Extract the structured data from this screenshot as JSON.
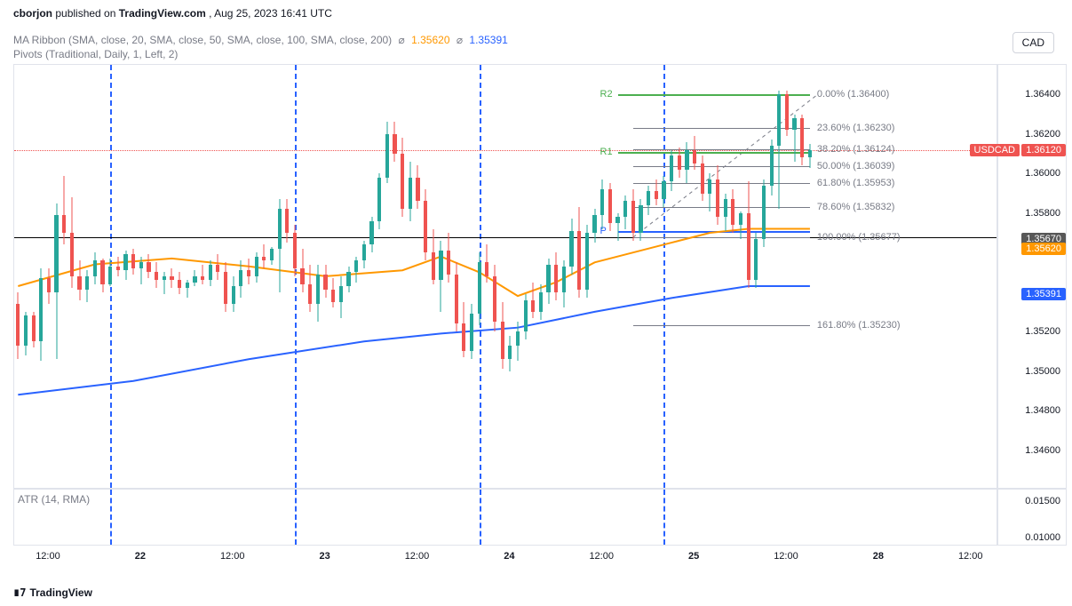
{
  "publish": {
    "author": "cborjon",
    "source": "TradingView.com",
    "ts": "Aug 25, 2023 16:41 UTC"
  },
  "currency_button": "CAD",
  "indicators": {
    "ma_ribbon": {
      "label": "MA Ribbon (SMA, close, 20, SMA, close, 50, SMA, close, 100, SMA, close, 200)",
      "val1": "1.35620",
      "val1_color": "#ff9800",
      "val2": "1.35391",
      "val2_color": "#2962ff"
    },
    "pivots": {
      "label": "Pivots (Traditional, Daily, 1, Left, 2)"
    },
    "atr": {
      "label": "ATR (14, RMA)"
    }
  },
  "price_axis": {
    "min": 1.344,
    "max": 1.3655,
    "ticks": [
      1.364,
      1.362,
      1.36,
      1.358,
      1.3567,
      1.354,
      1.352,
      1.35,
      1.348,
      1.346
    ],
    "tick_labels": [
      "1.36400",
      "1.36200",
      "1.36000",
      "1.35800",
      "1.35670",
      "1.35400",
      "1.35200",
      "1.35000",
      "1.34800",
      "1.34600"
    ],
    "badges": [
      {
        "text": "1.36120",
        "price": 1.3612,
        "bg": "#ef5350",
        "pair_text": "USDCAD",
        "pair_bg": "#ef5350"
      },
      {
        "text": "1.35670",
        "price": 1.3567,
        "bg": "#585858"
      },
      {
        "text": "1.35620",
        "price": 1.3562,
        "bg": "#ff9800"
      },
      {
        "text": "1.35391",
        "price": 1.35391,
        "bg": "#2962ff"
      }
    ]
  },
  "atr_axis": {
    "tick_labels": [
      "0.01500",
      "0.01000"
    ],
    "tick_pos": [
      0.2,
      0.85
    ]
  },
  "time_axis": {
    "labels": [
      {
        "t": 4,
        "text": "12:00"
      },
      {
        "t": 16,
        "text": "22",
        "bold": true
      },
      {
        "t": 28,
        "text": "12:00"
      },
      {
        "t": 40,
        "text": "23",
        "bold": true
      },
      {
        "t": 52,
        "text": "12:00"
      },
      {
        "t": 64,
        "text": "24",
        "bold": true
      },
      {
        "t": 76,
        "text": "12:00"
      },
      {
        "t": 88,
        "text": "25",
        "bold": true
      },
      {
        "t": 100,
        "text": "12:00"
      },
      {
        "t": 112,
        "text": "28",
        "bold": true
      },
      {
        "t": 124,
        "text": "12:00"
      }
    ],
    "nslots": 128
  },
  "session_lines": [
    12,
    36,
    60,
    84
  ],
  "fibs": {
    "x0_slot": 80,
    "x1_slot": 103,
    "levels": [
      {
        "pct": "0.00%",
        "price": 1.364,
        "label": "0.00% (1.36400)"
      },
      {
        "pct": "23.60%",
        "price": 1.3623,
        "label": "23.60% (1.36230)"
      },
      {
        "pct": "38.20%",
        "price": 1.36124,
        "label": "38.20% (1.36124)"
      },
      {
        "pct": "50.00%",
        "price": 1.36039,
        "label": "50.00% (1.36039)"
      },
      {
        "pct": "61.80%",
        "price": 1.35953,
        "label": "61.80% (1.35953)"
      },
      {
        "pct": "78.60%",
        "price": 1.35832,
        "label": "78.60% (1.35832)"
      },
      {
        "pct": "100.00%",
        "price": 1.35677,
        "label": "100.00% (1.35677)"
      },
      {
        "pct": "161.80%",
        "price": 1.3523,
        "label": "161.80% (1.35230)"
      }
    ],
    "trend_dash": {
      "from_slot": 80,
      "from_price": 1.35677,
      "to_slot": 104,
      "to_price": 1.364
    },
    "line_color": "#787b86",
    "label_x_offset": 8
  },
  "pivots": {
    "x0_slot": 78,
    "x1_slot": 103,
    "R2": {
      "label": "R2",
      "price": 1.364,
      "color": "#4caf50"
    },
    "R1": {
      "label": "R1",
      "price": 1.3611,
      "color": "#4caf50"
    },
    "P": {
      "label": "P",
      "price": 1.3571,
      "color": "#2962ff"
    }
  },
  "red_dotted_price": 1.3612,
  "black_hline_price": 1.35677,
  "ma20": {
    "color": "#ff9800",
    "width": 2,
    "pts": [
      [
        0,
        1.3543
      ],
      [
        10,
        1.3554
      ],
      [
        20,
        1.3557
      ],
      [
        30,
        1.3553
      ],
      [
        40,
        1.3548
      ],
      [
        50,
        1.3551
      ],
      [
        55,
        1.3558
      ],
      [
        60,
        1.355
      ],
      [
        65,
        1.3538
      ],
      [
        70,
        1.3545
      ],
      [
        75,
        1.3555
      ],
      [
        80,
        1.356
      ],
      [
        85,
        1.3565
      ],
      [
        90,
        1.357
      ],
      [
        95,
        1.3572
      ],
      [
        100,
        1.3572
      ],
      [
        103,
        1.3572
      ]
    ]
  },
  "ma50": {
    "color": "#2962ff",
    "width": 2,
    "pts": [
      [
        0,
        1.3488
      ],
      [
        15,
        1.3495
      ],
      [
        30,
        1.3506
      ],
      [
        45,
        1.3515
      ],
      [
        55,
        1.3519
      ],
      [
        65,
        1.3522
      ],
      [
        75,
        1.353
      ],
      [
        85,
        1.3537
      ],
      [
        95,
        1.3543
      ],
      [
        103,
        1.3543
      ]
    ]
  },
  "candles": [
    {
      "t": 0,
      "o": 1.3534,
      "h": 1.354,
      "l": 1.3506,
      "c": 1.3513
    },
    {
      "t": 1,
      "o": 1.3513,
      "h": 1.353,
      "l": 1.3508,
      "c": 1.3528
    },
    {
      "t": 2,
      "o": 1.3528,
      "h": 1.353,
      "l": 1.3512,
      "c": 1.3515
    },
    {
      "t": 3,
      "o": 1.3515,
      "h": 1.3552,
      "l": 1.3505,
      "c": 1.3547
    },
    {
      "t": 4,
      "o": 1.3547,
      "h": 1.3552,
      "l": 1.3534,
      "c": 1.354
    },
    {
      "t": 5,
      "o": 1.354,
      "h": 1.3585,
      "l": 1.3506,
      "c": 1.3579
    },
    {
      "t": 6,
      "o": 1.3579,
      "h": 1.3599,
      "l": 1.3564,
      "c": 1.357
    },
    {
      "t": 7,
      "o": 1.357,
      "h": 1.3588,
      "l": 1.3542,
      "c": 1.3548
    },
    {
      "t": 8,
      "o": 1.3548,
      "h": 1.3556,
      "l": 1.3536,
      "c": 1.3541
    },
    {
      "t": 9,
      "o": 1.3541,
      "h": 1.3551,
      "l": 1.3535,
      "c": 1.3548
    },
    {
      "t": 10,
      "o": 1.3548,
      "h": 1.356,
      "l": 1.3544,
      "c": 1.3556
    },
    {
      "t": 11,
      "o": 1.3556,
      "h": 1.3557,
      "l": 1.354,
      "c": 1.3544
    },
    {
      "t": 12,
      "o": 1.3544,
      "h": 1.3557,
      "l": 1.3543,
      "c": 1.3553
    },
    {
      "t": 13,
      "o": 1.3553,
      "h": 1.3558,
      "l": 1.3548,
      "c": 1.3551
    },
    {
      "t": 14,
      "o": 1.3551,
      "h": 1.3561,
      "l": 1.3546,
      "c": 1.3559
    },
    {
      "t": 15,
      "o": 1.3559,
      "h": 1.3562,
      "l": 1.3549,
      "c": 1.3552
    },
    {
      "t": 16,
      "o": 1.3552,
      "h": 1.3558,
      "l": 1.3544,
      "c": 1.3555
    },
    {
      "t": 17,
      "o": 1.3555,
      "h": 1.3559,
      "l": 1.3547,
      "c": 1.355
    },
    {
      "t": 18,
      "o": 1.355,
      "h": 1.3555,
      "l": 1.3542,
      "c": 1.3546
    },
    {
      "t": 19,
      "o": 1.3546,
      "h": 1.355,
      "l": 1.3539,
      "c": 1.3548
    },
    {
      "t": 20,
      "o": 1.3548,
      "h": 1.3552,
      "l": 1.3542,
      "c": 1.3546
    },
    {
      "t": 21,
      "o": 1.3546,
      "h": 1.355,
      "l": 1.3539,
      "c": 1.3542
    },
    {
      "t": 22,
      "o": 1.3542,
      "h": 1.3546,
      "l": 1.3537,
      "c": 1.3545
    },
    {
      "t": 23,
      "o": 1.3545,
      "h": 1.3551,
      "l": 1.3543,
      "c": 1.3548
    },
    {
      "t": 24,
      "o": 1.3548,
      "h": 1.3554,
      "l": 1.3544,
      "c": 1.3546
    },
    {
      "t": 25,
      "o": 1.3546,
      "h": 1.3556,
      "l": 1.3543,
      "c": 1.3554
    },
    {
      "t": 26,
      "o": 1.3554,
      "h": 1.3559,
      "l": 1.3546,
      "c": 1.355
    },
    {
      "t": 27,
      "o": 1.355,
      "h": 1.3555,
      "l": 1.353,
      "c": 1.3534
    },
    {
      "t": 28,
      "o": 1.3534,
      "h": 1.3548,
      "l": 1.353,
      "c": 1.3543
    },
    {
      "t": 29,
      "o": 1.3543,
      "h": 1.3556,
      "l": 1.3537,
      "c": 1.3551
    },
    {
      "t": 30,
      "o": 1.3551,
      "h": 1.3557,
      "l": 1.3544,
      "c": 1.3548
    },
    {
      "t": 31,
      "o": 1.3548,
      "h": 1.356,
      "l": 1.3545,
      "c": 1.3558
    },
    {
      "t": 32,
      "o": 1.3558,
      "h": 1.3564,
      "l": 1.3552,
      "c": 1.3556
    },
    {
      "t": 33,
      "o": 1.3556,
      "h": 1.3563,
      "l": 1.3554,
      "c": 1.3562
    },
    {
      "t": 34,
      "o": 1.3562,
      "h": 1.3587,
      "l": 1.354,
      "c": 1.3582
    },
    {
      "t": 35,
      "o": 1.3582,
      "h": 1.3587,
      "l": 1.3565,
      "c": 1.357
    },
    {
      "t": 36,
      "o": 1.357,
      "h": 1.3574,
      "l": 1.3548,
      "c": 1.3552
    },
    {
      "t": 37,
      "o": 1.3552,
      "h": 1.3562,
      "l": 1.354,
      "c": 1.3544
    },
    {
      "t": 38,
      "o": 1.3544,
      "h": 1.3554,
      "l": 1.353,
      "c": 1.3534
    },
    {
      "t": 39,
      "o": 1.3534,
      "h": 1.3554,
      "l": 1.3525,
      "c": 1.3549
    },
    {
      "t": 40,
      "o": 1.3549,
      "h": 1.3554,
      "l": 1.3537,
      "c": 1.3541
    },
    {
      "t": 41,
      "o": 1.3541,
      "h": 1.3547,
      "l": 1.3532,
      "c": 1.3535
    },
    {
      "t": 42,
      "o": 1.3535,
      "h": 1.3548,
      "l": 1.3527,
      "c": 1.3543
    },
    {
      "t": 43,
      "o": 1.3543,
      "h": 1.3553,
      "l": 1.354,
      "c": 1.355
    },
    {
      "t": 44,
      "o": 1.355,
      "h": 1.3558,
      "l": 1.3545,
      "c": 1.3556
    },
    {
      "t": 45,
      "o": 1.3556,
      "h": 1.3566,
      "l": 1.3552,
      "c": 1.3564
    },
    {
      "t": 46,
      "o": 1.3564,
      "h": 1.3578,
      "l": 1.356,
      "c": 1.3576
    },
    {
      "t": 47,
      "o": 1.3576,
      "h": 1.36,
      "l": 1.3572,
      "c": 1.3598
    },
    {
      "t": 48,
      "o": 1.3598,
      "h": 1.3626,
      "l": 1.3595,
      "c": 1.362
    },
    {
      "t": 49,
      "o": 1.362,
      "h": 1.3626,
      "l": 1.3606,
      "c": 1.361
    },
    {
      "t": 50,
      "o": 1.361,
      "h": 1.3618,
      "l": 1.3578,
      "c": 1.3582
    },
    {
      "t": 51,
      "o": 1.3582,
      "h": 1.3606,
      "l": 1.3576,
      "c": 1.3598
    },
    {
      "t": 52,
      "o": 1.3598,
      "h": 1.3604,
      "l": 1.3582,
      "c": 1.3586
    },
    {
      "t": 53,
      "o": 1.3586,
      "h": 1.3592,
      "l": 1.3556,
      "c": 1.356
    },
    {
      "t": 54,
      "o": 1.356,
      "h": 1.3572,
      "l": 1.3544,
      "c": 1.3546
    },
    {
      "t": 55,
      "o": 1.3546,
      "h": 1.3566,
      "l": 1.353,
      "c": 1.3561
    },
    {
      "t": 56,
      "o": 1.3561,
      "h": 1.357,
      "l": 1.3545,
      "c": 1.3549
    },
    {
      "t": 57,
      "o": 1.3549,
      "h": 1.3555,
      "l": 1.352,
      "c": 1.3524
    },
    {
      "t": 58,
      "o": 1.3524,
      "h": 1.3535,
      "l": 1.3507,
      "c": 1.351
    },
    {
      "t": 59,
      "o": 1.351,
      "h": 1.3534,
      "l": 1.3506,
      "c": 1.3529
    },
    {
      "t": 60,
      "o": 1.3529,
      "h": 1.356,
      "l": 1.3523,
      "c": 1.3555
    },
    {
      "t": 61,
      "o": 1.3555,
      "h": 1.3564,
      "l": 1.3545,
      "c": 1.3548
    },
    {
      "t": 62,
      "o": 1.3548,
      "h": 1.3554,
      "l": 1.352,
      "c": 1.3525
    },
    {
      "t": 63,
      "o": 1.3525,
      "h": 1.3535,
      "l": 1.3501,
      "c": 1.3506
    },
    {
      "t": 64,
      "o": 1.3506,
      "h": 1.3518,
      "l": 1.35,
      "c": 1.3513
    },
    {
      "t": 65,
      "o": 1.3513,
      "h": 1.3525,
      "l": 1.3505,
      "c": 1.352
    },
    {
      "t": 66,
      "o": 1.352,
      "h": 1.3539,
      "l": 1.3516,
      "c": 1.3536
    },
    {
      "t": 67,
      "o": 1.3536,
      "h": 1.3545,
      "l": 1.3527,
      "c": 1.353
    },
    {
      "t": 68,
      "o": 1.353,
      "h": 1.3544,
      "l": 1.3526,
      "c": 1.354
    },
    {
      "t": 69,
      "o": 1.354,
      "h": 1.3557,
      "l": 1.3534,
      "c": 1.3554
    },
    {
      "t": 70,
      "o": 1.3554,
      "h": 1.356,
      "l": 1.3536,
      "c": 1.354
    },
    {
      "t": 71,
      "o": 1.354,
      "h": 1.3556,
      "l": 1.3532,
      "c": 1.3553
    },
    {
      "t": 72,
      "o": 1.3553,
      "h": 1.3577,
      "l": 1.3549,
      "c": 1.3571
    },
    {
      "t": 73,
      "o": 1.3571,
      "h": 1.3583,
      "l": 1.3537,
      "c": 1.3541
    },
    {
      "t": 74,
      "o": 1.3541,
      "h": 1.3574,
      "l": 1.3537,
      "c": 1.357
    },
    {
      "t": 75,
      "o": 1.357,
      "h": 1.3582,
      "l": 1.3565,
      "c": 1.3579
    },
    {
      "t": 76,
      "o": 1.3579,
      "h": 1.3597,
      "l": 1.3572,
      "c": 1.3592
    },
    {
      "t": 77,
      "o": 1.3592,
      "h": 1.3595,
      "l": 1.3571,
      "c": 1.3575
    },
    {
      "t": 78,
      "o": 1.3575,
      "h": 1.358,
      "l": 1.3566,
      "c": 1.3578
    },
    {
      "t": 79,
      "o": 1.3578,
      "h": 1.3589,
      "l": 1.3572,
      "c": 1.3586
    },
    {
      "t": 80,
      "o": 1.3586,
      "h": 1.3592,
      "l": 1.3566,
      "c": 1.357
    },
    {
      "t": 81,
      "o": 1.357,
      "h": 1.3587,
      "l": 1.3566,
      "c": 1.3584
    },
    {
      "t": 82,
      "o": 1.3584,
      "h": 1.3594,
      "l": 1.3579,
      "c": 1.3591
    },
    {
      "t": 83,
      "o": 1.3591,
      "h": 1.3597,
      "l": 1.3584,
      "c": 1.3587
    },
    {
      "t": 84,
      "o": 1.3587,
      "h": 1.3599,
      "l": 1.3583,
      "c": 1.3596
    },
    {
      "t": 85,
      "o": 1.3596,
      "h": 1.3612,
      "l": 1.3591,
      "c": 1.3609
    },
    {
      "t": 86,
      "o": 1.3609,
      "h": 1.3613,
      "l": 1.3598,
      "c": 1.3602
    },
    {
      "t": 87,
      "o": 1.3602,
      "h": 1.3616,
      "l": 1.3595,
      "c": 1.3612
    },
    {
      "t": 88,
      "o": 1.3612,
      "h": 1.3619,
      "l": 1.3602,
      "c": 1.3605
    },
    {
      "t": 89,
      "o": 1.3605,
      "h": 1.3609,
      "l": 1.3586,
      "c": 1.359
    },
    {
      "t": 90,
      "o": 1.359,
      "h": 1.36,
      "l": 1.3581,
      "c": 1.3597
    },
    {
      "t": 91,
      "o": 1.3597,
      "h": 1.3604,
      "l": 1.3574,
      "c": 1.3578
    },
    {
      "t": 92,
      "o": 1.3578,
      "h": 1.359,
      "l": 1.3571,
      "c": 1.3587
    },
    {
      "t": 93,
      "o": 1.3587,
      "h": 1.3592,
      "l": 1.357,
      "c": 1.3574
    },
    {
      "t": 94,
      "o": 1.3574,
      "h": 1.3581,
      "l": 1.3567,
      "c": 1.358
    },
    {
      "t": 95,
      "o": 1.358,
      "h": 1.3596,
      "l": 1.3542,
      "c": 1.3546
    },
    {
      "t": 96,
      "o": 1.3546,
      "h": 1.357,
      "l": 1.3542,
      "c": 1.3567
    },
    {
      "t": 97,
      "o": 1.3567,
      "h": 1.3597,
      "l": 1.3563,
      "c": 1.3594
    },
    {
      "t": 98,
      "o": 1.3594,
      "h": 1.3617,
      "l": 1.3589,
      "c": 1.3614
    },
    {
      "t": 99,
      "o": 1.3614,
      "h": 1.3642,
      "l": 1.3582,
      "c": 1.364
    },
    {
      "t": 100,
      "o": 1.364,
      "h": 1.3642,
      "l": 1.3619,
      "c": 1.3622
    },
    {
      "t": 101,
      "o": 1.3622,
      "h": 1.363,
      "l": 1.3606,
      "c": 1.3628
    },
    {
      "t": 102,
      "o": 1.3628,
      "h": 1.363,
      "l": 1.3604,
      "c": 1.3608
    },
    {
      "t": 103,
      "o": 1.3608,
      "h": 1.3615,
      "l": 1.3603,
      "c": 1.3612
    }
  ],
  "colors": {
    "up": "#26a69a",
    "dn": "#ef5350",
    "grid": "#e0e3eb",
    "axis_text": "#131722",
    "pivot_P": "#2962ff",
    "pivot_R": "#4caf50"
  },
  "footer": "TradingView"
}
